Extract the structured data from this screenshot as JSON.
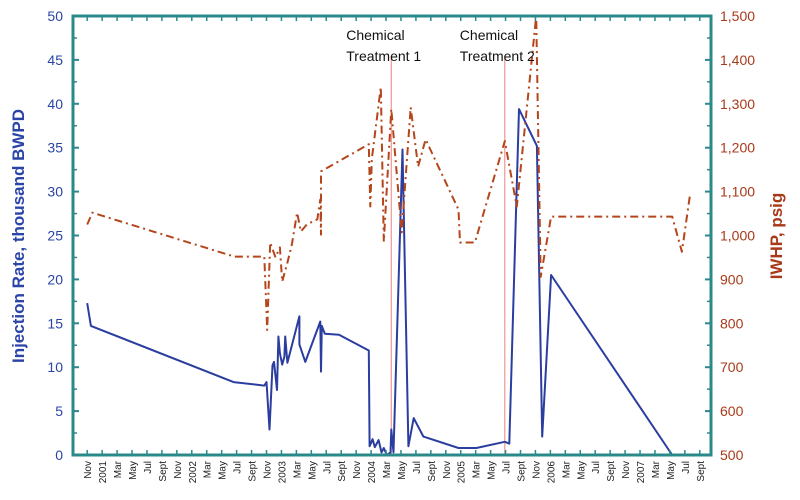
{
  "chart_data": {
    "type": "line",
    "title": "",
    "xlabel": "",
    "x_units": "months since Nov 2000",
    "x_tick_labels": [
      "Nov",
      "2001",
      "Mar",
      "May",
      "Jul",
      "Sept",
      "Nov",
      "2002",
      "Mar",
      "May",
      "Jul",
      "Sept",
      "Nov",
      "2003",
      "Mar",
      "May",
      "Jul",
      "Sept",
      "Nov",
      "2004",
      "Mar",
      "May",
      "Jul",
      "Sept",
      "Nov",
      "2005",
      "Mar",
      "May",
      "Jul",
      "Sept",
      "Nov",
      "2006",
      "Mar",
      "May",
      "Jul",
      "Sept",
      "Nov",
      "2007",
      "Mar",
      "May",
      "Jul",
      "Sept"
    ],
    "xlim": [
      -1.9,
      83.5
    ],
    "ylabel": "Injection Rate, thousand BWPD",
    "ylim": [
      0,
      50
    ],
    "y_ticks": [
      "0",
      "5",
      "10",
      "15",
      "20",
      "25",
      "30",
      "35",
      "40",
      "45",
      "50"
    ],
    "y2label": "IWHP, psig",
    "y2lim": [
      500,
      1500
    ],
    "y2_ticks": [
      "500",
      "600",
      "700",
      "800",
      "900",
      "1,000",
      "1,100",
      "1,200",
      "1,300",
      "1,400",
      "1,500"
    ],
    "grid": false,
    "colors": {
      "injection": "#2b3ea0",
      "iwhp": "#b5451b",
      "treatment": "#f08080",
      "axis": "#2a8a8a"
    },
    "annotations": [
      {
        "line1": "Chemical",
        "line2": "Treatment 1",
        "x": 40.7
      },
      {
        "line1": "Chemical",
        "line2": "Treatment 2",
        "x": 55.9
      }
    ],
    "series": [
      {
        "name": "Injection Rate",
        "axis": "left",
        "x": [
          0,
          0.5,
          19.6,
          23.7,
          24.0,
          24.4,
          24.8,
          25.0,
          25.4,
          25.6,
          25.8,
          26.1,
          26.4,
          26.5,
          26.8,
          28.4,
          28.4,
          29.2,
          31.2,
          31.3,
          31.4,
          31.8,
          33.7,
          37.7,
          37.8,
          38.2,
          38.5,
          39.0,
          39.4,
          39.7,
          40.1,
          40.6,
          40.7,
          41.0,
          42.2,
          43.0,
          43.7,
          45.0,
          49.7,
          52.1,
          55.9,
          56.5,
          57.8,
          60.2,
          60.9,
          62.1,
          78.3,
          80.7
        ],
        "y": [
          17.3,
          14.7,
          8.3,
          7.9,
          8.3,
          2.9,
          10.2,
          10.6,
          7.4,
          13.5,
          11.6,
          10.3,
          11.2,
          13.5,
          10.5,
          15.8,
          12.6,
          10.6,
          15.2,
          9.5,
          14.7,
          13.8,
          13.7,
          11.9,
          1.0,
          1.8,
          0.9,
          1.7,
          0.3,
          0.8,
          0,
          0.3,
          2.9,
          0.3,
          34.8,
          1.0,
          4.2,
          2.1,
          0.8,
          0.8,
          1.5,
          1.3,
          39.4,
          35.2,
          2.1,
          20.5,
          0,
          0
        ]
      },
      {
        "name": "IWHP",
        "axis": "right",
        "x": [
          0,
          0.7,
          19.7,
          23.7,
          24.1,
          24.5,
          25.2,
          25.8,
          26.1,
          26.8,
          27.4,
          28.1,
          28.6,
          29.4,
          30.8,
          31.2,
          31.3,
          31.3,
          37.7,
          37.9,
          38.1,
          39.3,
          39.7,
          40.7,
          42.1,
          43.3,
          44.3,
          45.3,
          49.7,
          49.9,
          51.9,
          55.9,
          57.5,
          60.1,
          60.7,
          62.1,
          78.3,
          79.6,
          80.7
        ],
        "y": [
          1025,
          1052,
          952,
          952,
          785,
          984,
          950,
          973,
          895,
          938,
          980,
          1052,
          1009,
          1025,
          1037,
          1082,
          1002,
          1146,
          1208,
          1066,
          1174,
          1338,
          986,
          1288,
          1007,
          1292,
          1157,
          1219,
          1059,
          984,
          984,
          1215,
          1066,
          1500,
          906,
          1043,
          1043,
          963,
          1094
        ]
      }
    ]
  }
}
